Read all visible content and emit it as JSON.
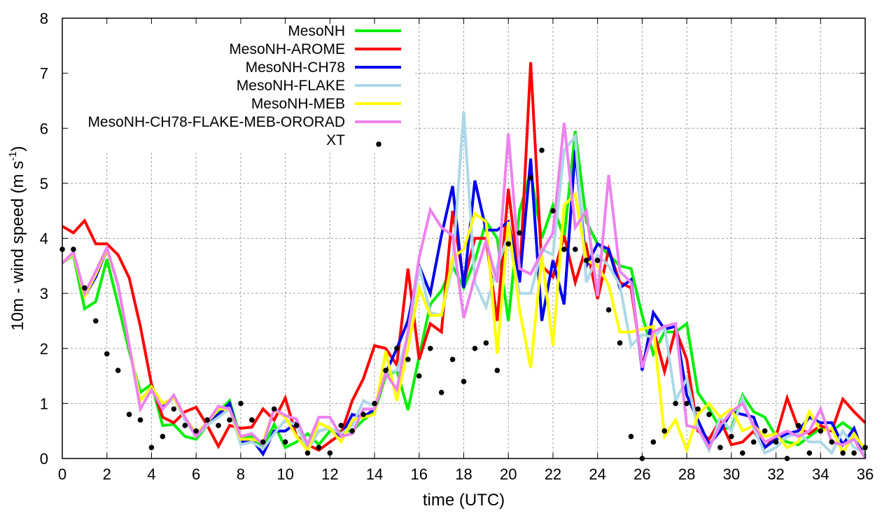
{
  "chart_data": {
    "type": "line",
    "title": "",
    "xlabel": "time (UTC)",
    "ylabel": "10m - wind speed  (m s-1)",
    "ylabel_main": "10m - wind speed  (m s",
    "ylabel_sup": "-1",
    "ylabel_close": ")",
    "xlim": [
      0,
      36
    ],
    "ylim": [
      0,
      8
    ],
    "xticks": [
      0,
      2,
      4,
      6,
      8,
      10,
      12,
      14,
      16,
      18,
      20,
      22,
      24,
      26,
      28,
      30,
      32,
      34,
      36
    ],
    "yticks": [
      0,
      1,
      2,
      3,
      4,
      5,
      6,
      7,
      8
    ],
    "grid": true,
    "legend_position": "top-left",
    "x_step": 0.5,
    "series": [
      {
        "name": "MesoNH",
        "color": "#00ee00",
        "style": "line",
        "values": [
          3.55,
          3.7,
          2.72,
          2.85,
          3.62,
          2.8,
          1.95,
          1.2,
          1.35,
          0.6,
          0.62,
          0.4,
          0.35,
          0.6,
          0.85,
          1.05,
          0.35,
          0.4,
          0.2,
          0.62,
          0.2,
          0.3,
          0.45,
          0.25,
          0.5,
          0.5,
          0.5,
          0.7,
          0.85,
          1.5,
          1.6,
          0.88,
          1.85,
          2.8,
          3.05,
          3.5,
          3.1,
          3.6,
          4.3,
          4.0,
          2.5,
          4.5,
          5.2,
          4.0,
          4.6,
          4.0,
          5.95,
          4.3,
          3.9,
          3.7,
          3.5,
          3.45,
          2.6,
          1.9,
          2.3,
          2.3,
          2.45,
          1.2,
          0.9,
          0.55,
          0.55,
          1.15,
          0.85,
          0.75,
          0.4,
          0.3,
          0.25,
          0.4,
          0.55,
          0.5,
          0.65,
          0.5,
          0.05
        ]
      },
      {
        "name": "MesoNH-AROME",
        "color": "#ff0000",
        "style": "line",
        "values": [
          4.22,
          4.1,
          4.32,
          3.9,
          3.9,
          3.7,
          3.28,
          2.4,
          1.35,
          0.75,
          0.65,
          0.85,
          0.93,
          0.6,
          0.22,
          0.6,
          0.55,
          0.57,
          0.9,
          0.7,
          1.1,
          0.4,
          0.25,
          0.15,
          0.3,
          0.45,
          1.05,
          1.45,
          2.05,
          2.0,
          1.7,
          3.45,
          1.8,
          2.45,
          2.3,
          4.5,
          3.2,
          4.0,
          4.0,
          2.5,
          4.9,
          3.2,
          7.2,
          3.5,
          3.3,
          4.05,
          3.2,
          3.85,
          2.9,
          3.8,
          3.2,
          3.1,
          1.7,
          2.35,
          1.58,
          2.35,
          1.8,
          0.5,
          0.35,
          0.7,
          0.25,
          0.3,
          0.5,
          0.2,
          0.4,
          1.1,
          0.55,
          0.45,
          0.6,
          0.5,
          1.08,
          0.85,
          0.65
        ]
      },
      {
        "name": "MesoNH-CH78",
        "color": "#0000ee",
        "style": "line",
        "values": [
          3.55,
          3.72,
          2.95,
          3.3,
          3.8,
          3.15,
          2.05,
          1.05,
          1.3,
          0.95,
          1.12,
          0.75,
          0.45,
          0.65,
          0.8,
          1.0,
          0.3,
          0.35,
          0.08,
          0.5,
          0.5,
          0.65,
          0.2,
          0.5,
          0.55,
          0.4,
          0.8,
          0.75,
          0.9,
          1.55,
          2.0,
          2.5,
          3.5,
          3.0,
          4.05,
          4.95,
          3.1,
          5.05,
          4.15,
          4.15,
          4.3,
          3.2,
          5.45,
          2.5,
          3.6,
          2.8,
          5.6,
          3.5,
          3.9,
          3.8,
          3.1,
          3.25,
          1.6,
          2.65,
          2.35,
          2.4,
          1.15,
          0.7,
          0.25,
          0.5,
          0.85,
          0.8,
          0.75,
          0.2,
          0.35,
          0.45,
          0.5,
          0.75,
          0.65,
          0.65,
          0.25,
          0.55,
          0.0
        ]
      },
      {
        "name": "MesoNH-FLAKE",
        "color": "#add8e6",
        "style": "line",
        "values": [
          3.55,
          3.72,
          2.95,
          3.4,
          3.8,
          3.15,
          2.05,
          1.05,
          1.3,
          0.9,
          1.1,
          0.7,
          0.4,
          0.6,
          0.75,
          0.9,
          0.25,
          0.3,
          0.18,
          0.45,
          0.7,
          0.6,
          0.15,
          0.5,
          0.55,
          0.45,
          0.6,
          1.05,
          0.95,
          1.55,
          1.6,
          2.2,
          3.5,
          2.65,
          2.6,
          3.5,
          6.3,
          3.2,
          2.75,
          3.5,
          4.05,
          3.0,
          3.0,
          3.8,
          3.7,
          5.6,
          5.85,
          3.2,
          3.7,
          3.5,
          3.15,
          2.05,
          2.25,
          2.2,
          2.4,
          1.05,
          1.45,
          0.55,
          0.15,
          0.75,
          0.5,
          1.1,
          0.55,
          0.1,
          0.2,
          0.4,
          0.45,
          0.3,
          0.3,
          0.1,
          0.5,
          0.2,
          0.1
        ]
      },
      {
        "name": "MesoNH-MEB",
        "color": "#ffff00",
        "style": "line",
        "values": [
          3.55,
          3.72,
          2.95,
          3.35,
          3.8,
          3.15,
          2.05,
          1.05,
          1.3,
          1.0,
          1.1,
          0.75,
          0.45,
          0.65,
          0.9,
          0.9,
          0.35,
          0.35,
          0.3,
          0.9,
          0.75,
          0.4,
          0.15,
          0.65,
          0.55,
          0.3,
          0.7,
          0.75,
          0.8,
          1.95,
          1.05,
          2.0,
          3.1,
          2.6,
          2.6,
          3.65,
          3.8,
          4.45,
          4.3,
          1.9,
          4.3,
          2.7,
          1.65,
          3.7,
          2.05,
          4.6,
          4.8,
          3.6,
          3.5,
          3.15,
          2.3,
          2.3,
          2.35,
          2.4,
          0.4,
          0.7,
          0.15,
          0.8,
          1.0,
          0.75,
          0.9,
          0.5,
          0.6,
          0.4,
          0.45,
          0.2,
          0.3,
          0.85,
          0.5,
          0.55,
          0.1,
          0.45,
          0.15
        ]
      },
      {
        "name": "MesoNH-CH78-FLAKE-MEB-ORORAD",
        "color": "#ee82ee",
        "style": "line",
        "values": [
          3.55,
          3.75,
          3.0,
          3.4,
          3.83,
          3.15,
          2.05,
          0.9,
          1.25,
          0.9,
          1.15,
          0.75,
          0.4,
          0.65,
          0.95,
          0.9,
          0.4,
          0.45,
          0.25,
          0.9,
          0.78,
          0.72,
          0.25,
          0.75,
          0.75,
          0.4,
          0.45,
          0.9,
          0.9,
          1.55,
          1.25,
          2.3,
          3.65,
          4.52,
          4.2,
          4.05,
          2.55,
          3.3,
          3.95,
          3.2,
          5.9,
          3.45,
          3.35,
          3.75,
          4.1,
          6.1,
          4.2,
          4.5,
          2.95,
          5.15,
          3.4,
          3.2,
          1.65,
          2.3,
          2.4,
          2.45,
          0.6,
          0.55,
          0.2,
          0.6,
          0.85,
          1.0,
          0.6,
          0.3,
          0.4,
          0.5,
          0.4,
          0.5,
          0.9,
          0.3,
          0.25,
          0.35,
          0.0
        ]
      },
      {
        "name": "XT",
        "color": "#000000",
        "style": "points",
        "values": [
          3.8,
          3.8,
          3.1,
          2.5,
          1.9,
          1.6,
          0.8,
          0.7,
          0.2,
          0.4,
          0.9,
          0.6,
          0.5,
          0.7,
          0.6,
          0.7,
          1.0,
          0.7,
          0.3,
          0.9,
          0.3,
          0.6,
          0.1,
          0.2,
          0.1,
          0.6,
          0.5,
          0.8,
          1.0,
          1.6,
          2.0,
          1.8,
          1.5,
          2.0,
          1.2,
          1.8,
          1.4,
          2.0,
          2.1,
          1.6,
          3.9,
          4.1,
          5.1,
          5.6,
          4.5,
          3.8,
          3.8,
          3.6,
          3.6,
          2.7,
          2.1,
          0.4,
          0.0,
          0.3,
          0.5,
          1.0,
          1.0,
          0.9,
          0.8,
          0.2,
          0.4,
          0.1,
          0.3,
          0.5,
          0.3,
          0.0,
          0.6,
          0.1,
          0.5,
          0.3,
          0.1,
          0.1,
          0.2
        ]
      }
    ]
  }
}
